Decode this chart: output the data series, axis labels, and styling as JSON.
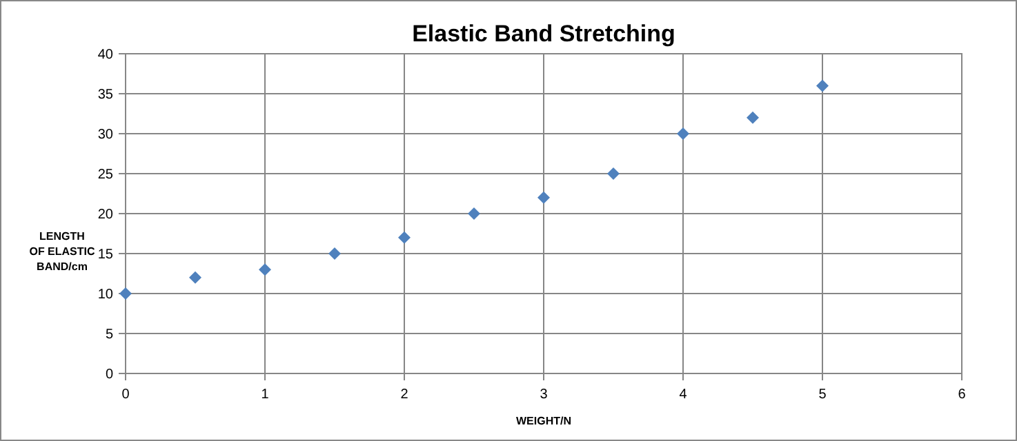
{
  "chart_data": {
    "type": "scatter",
    "title": "Elastic Band Stretching",
    "xlabel": "WEIGHT/N",
    "ylabel": "LENGTH\nOF ELASTIC\nBAND/cm",
    "x": [
      0,
      0.5,
      1,
      1.5,
      2,
      2.5,
      3,
      3.5,
      4,
      4.5,
      5
    ],
    "series": [
      {
        "color": "#4f81bd",
        "values": [
          10,
          12,
          13,
          15,
          17,
          20,
          22,
          25,
          30,
          32,
          36
        ]
      }
    ],
    "xlim": [
      0,
      6
    ],
    "xticks": [
      0,
      1,
      2,
      3,
      4,
      5,
      6
    ],
    "ylim": [
      0,
      40
    ],
    "yticks": [
      0,
      5,
      10,
      15,
      20,
      25,
      30,
      35,
      40
    ],
    "grid": true,
    "marker": "diamond"
  }
}
